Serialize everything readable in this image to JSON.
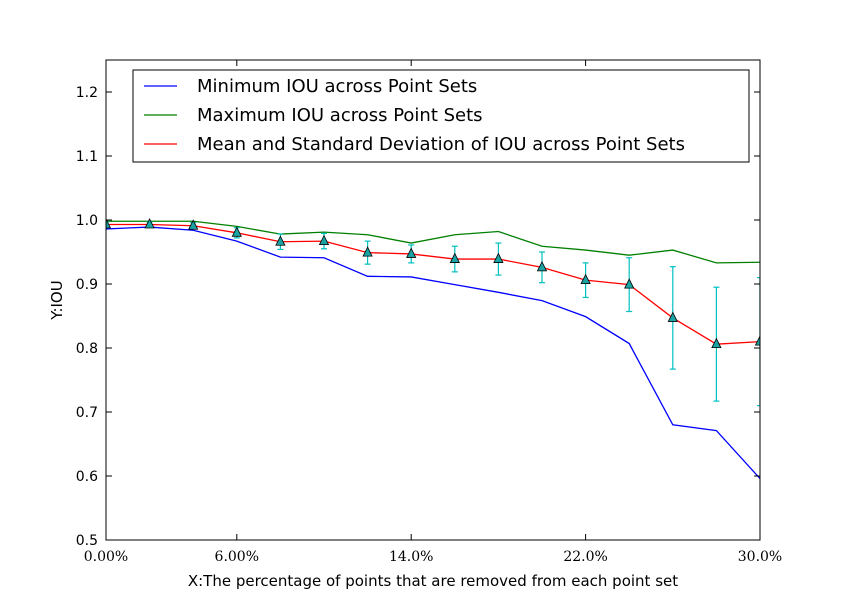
{
  "chart_data": {
    "type": "line",
    "xlabel": "X:The percentage of points that are removed from each point set",
    "ylabel": "Y:IOU",
    "xlim": [
      0,
      30
    ],
    "ylim": [
      0.5,
      1.25
    ],
    "x_ticks": [
      {
        "value": 0,
        "label": "0.00%"
      },
      {
        "value": 6,
        "label": "6.00%"
      },
      {
        "value": 14,
        "label": "14.0%"
      },
      {
        "value": 22,
        "label": "22.0%"
      },
      {
        "value": 30,
        "label": "30.0%"
      }
    ],
    "y_ticks": [
      {
        "value": 0.5,
        "label": "0.5"
      },
      {
        "value": 0.6,
        "label": "0.6"
      },
      {
        "value": 0.7,
        "label": "0.7"
      },
      {
        "value": 0.8,
        "label": "0.8"
      },
      {
        "value": 0.9,
        "label": "0.9"
      },
      {
        "value": 1.0,
        "label": "1.0"
      },
      {
        "value": 1.1,
        "label": "1.1"
      },
      {
        "value": 1.2,
        "label": "1.2"
      }
    ],
    "grid": false,
    "legend_position": "top",
    "x": [
      0,
      2,
      4,
      6,
      8,
      10,
      12,
      14,
      16,
      18,
      20,
      22,
      24,
      26,
      28,
      30
    ],
    "series": [
      {
        "name": "Minimum IOU across Point Sets",
        "color": "#0000ff",
        "values": [
          0.986,
          0.989,
          0.984,
          0.967,
          0.942,
          0.941,
          0.912,
          0.911,
          0.899,
          0.887,
          0.874,
          0.849,
          0.807,
          0.68,
          0.671,
          0.596
        ]
      },
      {
        "name": "Maximum IOU across Point Sets",
        "color": "#008000",
        "values": [
          0.998,
          0.998,
          0.998,
          0.99,
          0.978,
          0.981,
          0.977,
          0.964,
          0.977,
          0.982,
          0.959,
          0.953,
          0.945,
          0.953,
          0.933,
          0.934
        ]
      },
      {
        "name": "Mean and Standard Deviation of IOU across Point Sets",
        "color": "#ff0000",
        "values": [
          0.993,
          0.993,
          0.991,
          0.98,
          0.966,
          0.967,
          0.949,
          0.947,
          0.939,
          0.939,
          0.926,
          0.906,
          0.899,
          0.847,
          0.806,
          0.81
        ],
        "errors": [
          0.004,
          0.004,
          0.005,
          0.008,
          0.012,
          0.012,
          0.018,
          0.014,
          0.02,
          0.025,
          0.024,
          0.027,
          0.042,
          0.08,
          0.089,
          0.1
        ],
        "marker": "triangle",
        "marker_color": "#1aa3a3",
        "errorbar_color": "#00bfbf"
      }
    ]
  }
}
